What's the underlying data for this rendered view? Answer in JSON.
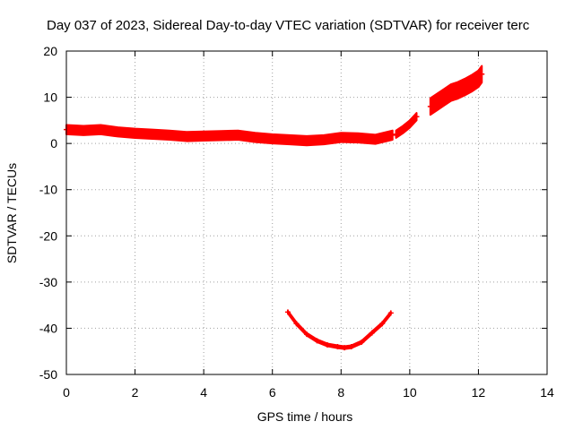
{
  "chart_data": {
    "type": "scatter",
    "title": "Day 037 of 2023, Sidereal Day-to-day VTEC variation (SDTVAR) for receiver terc",
    "xlabel": "GPS time / hours",
    "ylabel": "SDTVAR / TECUs",
    "xlim": [
      0,
      14
    ],
    "ylim": [
      -50,
      20
    ],
    "xticks": [
      0,
      2,
      4,
      6,
      8,
      10,
      12,
      14
    ],
    "yticks": [
      20,
      10,
      0,
      -10,
      -20,
      -30,
      -40,
      -50
    ],
    "grid": true,
    "colors": {
      "series": "#ff0000",
      "grid": "#a0a0a0",
      "axis": "#000000"
    },
    "series": [
      {
        "name": "main band",
        "band_halfwidth": 1.0,
        "x": [
          0.0,
          0.5,
          1.0,
          1.5,
          2.0,
          2.5,
          3.0,
          3.5,
          4.0,
          4.5,
          5.0,
          5.5,
          6.0,
          6.5,
          7.0,
          7.5,
          8.0,
          8.5,
          9.0,
          9.5
        ],
        "y": [
          3.0,
          2.8,
          3.0,
          2.5,
          2.2,
          2.0,
          1.8,
          1.5,
          1.6,
          1.7,
          1.8,
          1.3,
          1.0,
          0.8,
          0.6,
          0.8,
          1.3,
          1.2,
          0.9,
          1.8
        ]
      },
      {
        "name": "rising segment",
        "band_halfwidth": 0.8,
        "x": [
          9.6,
          9.8,
          10.0,
          10.2
        ],
        "y": [
          2.0,
          3.0,
          4.2,
          5.8
        ]
      },
      {
        "name": "high segment",
        "band_halfwidth": 1.8,
        "x": [
          10.6,
          10.8,
          11.0,
          11.2,
          11.4,
          11.6,
          11.8,
          12.0,
          12.1
        ],
        "y": [
          8.0,
          9.0,
          10.0,
          11.0,
          11.5,
          12.2,
          13.0,
          14.0,
          15.0
        ]
      },
      {
        "name": "lower arc",
        "band_halfwidth": 0.3,
        "x": [
          6.45,
          6.7,
          7.0,
          7.3,
          7.6,
          7.9,
          8.1,
          8.3,
          8.6,
          8.9,
          9.2,
          9.45
        ],
        "y": [
          -36.5,
          -39.0,
          -41.3,
          -42.7,
          -43.6,
          -44.0,
          -44.2,
          -44.0,
          -43.0,
          -41.0,
          -39.0,
          -36.7
        ]
      }
    ]
  }
}
